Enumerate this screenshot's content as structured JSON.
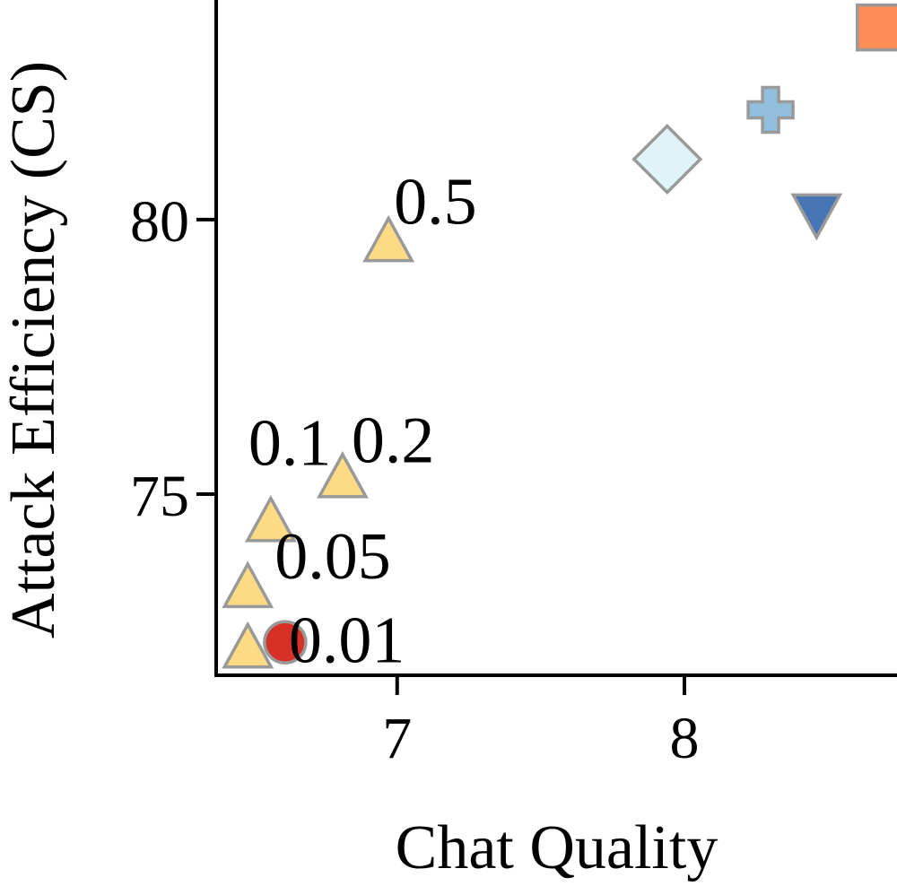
{
  "chart_data": {
    "type": "scatter",
    "title": "",
    "xlabel": "Chat Quality",
    "ylabel": "Attack Efficiency (CS)",
    "xlim": [
      6.37,
      8.74
    ],
    "ylim": [
      71.7,
      84
    ],
    "x_ticks": [
      7,
      8
    ],
    "y_ticks": [
      75,
      80
    ],
    "grid": false,
    "points": [
      {
        "marker": "triangle-up",
        "color": "#fddb85",
        "x": 6.48,
        "y": 72.2,
        "label": ""
      },
      {
        "marker": "circle",
        "color": "#d73027",
        "x": 6.61,
        "y": 72.3,
        "label": "0.01"
      },
      {
        "marker": "triangle-up",
        "color": "#fddb85",
        "x": 6.48,
        "y": 73.3,
        "label": "0.05"
      },
      {
        "marker": "triangle-up",
        "color": "#fddb85",
        "x": 6.56,
        "y": 74.5,
        "label": "0.1"
      },
      {
        "marker": "triangle-up",
        "color": "#fddb85",
        "x": 6.81,
        "y": 75.3,
        "label": "0.2"
      },
      {
        "marker": "triangle-up",
        "color": "#fddb85",
        "x": 6.97,
        "y": 79.6,
        "label": "0.5"
      },
      {
        "marker": "diamond",
        "color": "#e0f3f8",
        "x": 7.94,
        "y": 81.1,
        "label": ""
      },
      {
        "marker": "plus",
        "color": "#91bfdb",
        "x": 8.3,
        "y": 82.0,
        "label": ""
      },
      {
        "marker": "triangle-down",
        "color": "#4575b4",
        "x": 8.46,
        "y": 80.1,
        "label": ""
      },
      {
        "marker": "square",
        "color": "#fc8d59",
        "x": 8.68,
        "y": 83.5,
        "label": ""
      }
    ]
  }
}
